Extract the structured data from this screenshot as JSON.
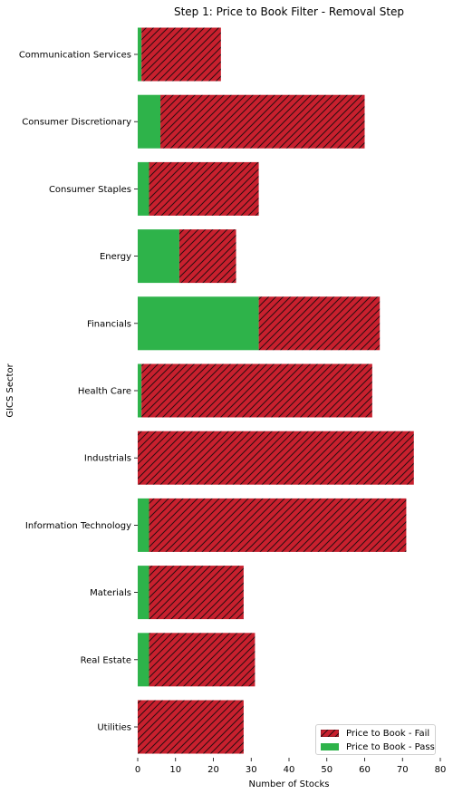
{
  "chart_data": {
    "type": "bar",
    "orientation": "horizontal",
    "stacked": true,
    "title": "Step 1: Price to Book Filter - Removal Step",
    "xlabel": "Number of Stocks",
    "ylabel": "GICS Sector",
    "xlim": [
      0,
      80
    ],
    "xticks": [
      0,
      10,
      20,
      30,
      40,
      50,
      60,
      70,
      80
    ],
    "categories": [
      "Communication Services",
      "Consumer Discretionary",
      "Consumer Staples",
      "Energy",
      "Financials",
      "Health Care",
      "Industrials",
      "Information Technology",
      "Materials",
      "Real Estate",
      "Utilities"
    ],
    "series": [
      {
        "name": "Price to Book - Fail",
        "color": "#c8202e",
        "hatch": "diagonal",
        "values": [
          21,
          54,
          29,
          15,
          32,
          61,
          73,
          68,
          25,
          28,
          28
        ]
      },
      {
        "name": "Price to Book - Pass",
        "color": "#2eb34a",
        "values": [
          1,
          6,
          3,
          11,
          32,
          1,
          0,
          3,
          3,
          3,
          0
        ]
      }
    ],
    "legend_position": "bottom-right",
    "grid": false
  }
}
